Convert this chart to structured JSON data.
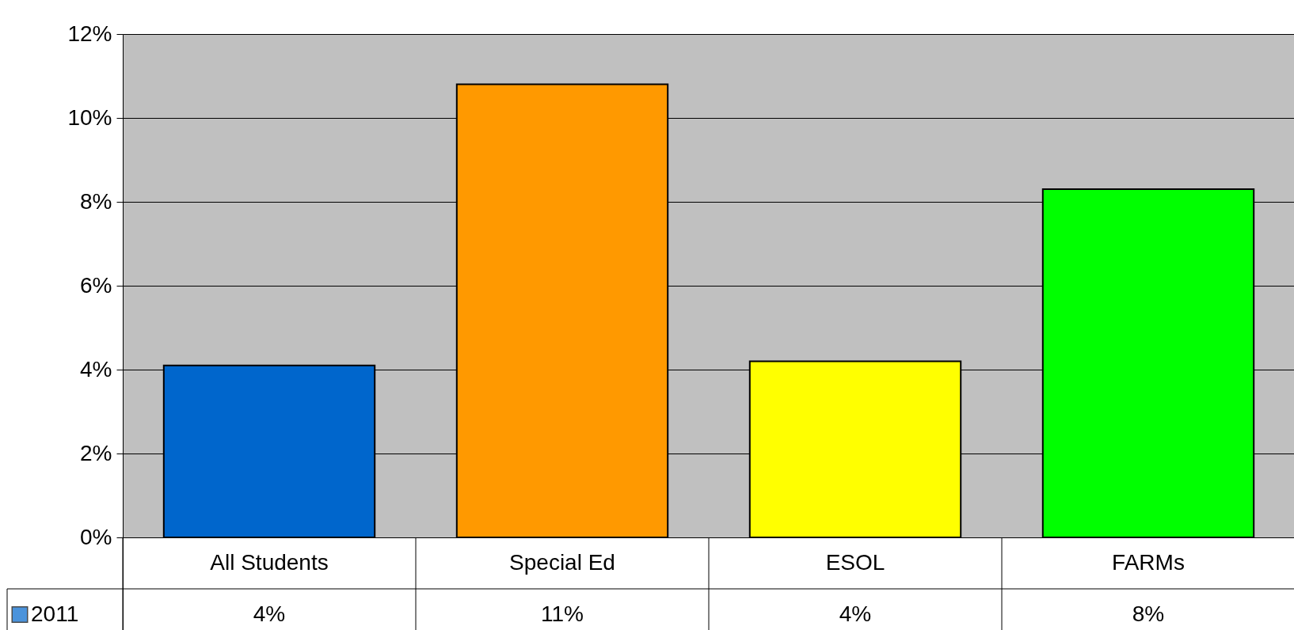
{
  "chart_data": {
    "type": "bar",
    "categories": [
      "All Students",
      "Special Ed",
      "ESOL",
      "FARMs"
    ],
    "series": [
      {
        "name": "2011",
        "color": "#0066cc",
        "colors": [
          "#0066cc",
          "#ff9900",
          "#ffff00",
          "#00ff00"
        ],
        "values": [
          4.1,
          10.8,
          4.2,
          8.3
        ],
        "value_labels": [
          "4%",
          "11%",
          "4%",
          "8%"
        ]
      }
    ],
    "ylim": [
      0,
      12
    ],
    "yticks": [
      {
        "value": 0,
        "label": "0%"
      },
      {
        "value": 2,
        "label": "2%"
      },
      {
        "value": 4,
        "label": "4%"
      },
      {
        "value": 6,
        "label": "6%"
      },
      {
        "value": 8,
        "label": "8%"
      },
      {
        "value": 10,
        "label": "10%"
      },
      {
        "value": 12,
        "label": "12%"
      }
    ],
    "grid": "y",
    "legend": "bottom left"
  }
}
